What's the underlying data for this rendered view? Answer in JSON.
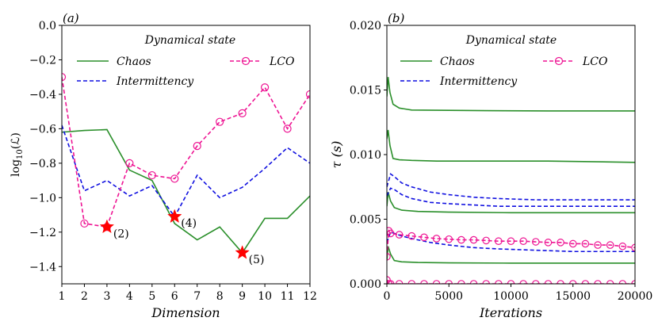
{
  "colors": {
    "chaos": "#2a8f2a",
    "intermittency": "#1010e0",
    "lco": "#ee1493",
    "star": "#ff0000"
  },
  "chart_data": [
    {
      "type": "line",
      "panel_label": "(a)",
      "xlabel": "Dimension",
      "ylabel": "log10(L)",
      "xlim": [
        1,
        12
      ],
      "ylim": [
        -1.5,
        0.0
      ],
      "xticks": [
        1,
        2,
        3,
        4,
        5,
        6,
        7,
        8,
        9,
        10,
        11,
        12
      ],
      "yticks": [
        0.0,
        -0.2,
        -0.4,
        -0.6,
        -0.8,
        -1.0,
        -1.2,
        -1.4
      ],
      "ytick_labels": [
        "0.0",
        "−0.2",
        "−0.4",
        "−0.6",
        "−0.8",
        "−1.0",
        "−1.2",
        "−1.4"
      ],
      "legend_title": "Dynamical state",
      "x": [
        1,
        2,
        3,
        4,
        5,
        6,
        7,
        8,
        9,
        10,
        11,
        12
      ],
      "series": [
        {
          "name": "Chaos",
          "style": "solid",
          "values": [
            -0.62,
            -0.61,
            -0.605,
            -0.84,
            -0.9,
            -1.15,
            -1.245,
            -1.17,
            -1.32,
            -1.12,
            -1.12,
            -0.99
          ]
        },
        {
          "name": "Intermittency",
          "style": "dashed",
          "values": [
            -0.58,
            -0.96,
            -0.9,
            -0.99,
            -0.93,
            -1.11,
            -0.87,
            -1.0,
            -0.94,
            -0.83,
            -0.71,
            -0.8
          ]
        },
        {
          "name": "LCO",
          "style": "dashed-circle",
          "values": [
            -0.3,
            -1.15,
            -1.17,
            -0.8,
            -0.87,
            -0.89,
            -0.7,
            -0.56,
            -0.51,
            -0.36,
            -0.6,
            -0.4
          ]
        }
      ],
      "annotations": [
        {
          "label": "(2)",
          "x": 3,
          "y": -1.17,
          "series": "LCO"
        },
        {
          "label": "(4)",
          "x": 6,
          "y": -1.11,
          "series": "Intermittency"
        },
        {
          "label": "(5)",
          "x": 9,
          "y": -1.32,
          "series": "Chaos"
        }
      ]
    },
    {
      "type": "line",
      "panel_label": "(b)",
      "xlabel": "Iterations",
      "ylabel": "τ (s)",
      "xlim": [
        0,
        20000
      ],
      "ylim": [
        0.0,
        0.02
      ],
      "xticks": [
        0,
        5000,
        10000,
        15000,
        20000
      ],
      "yticks": [
        0.0,
        0.005,
        0.01,
        0.015,
        0.02
      ],
      "ytick_labels": [
        "0.000",
        "0.005",
        "0.010",
        "0.015",
        "0.020"
      ],
      "legend_title": "Dynamical state",
      "series": [
        {
          "name": "Chaos",
          "style": "solid",
          "x": [
            0,
            100,
            250,
            500,
            1000,
            2000,
            4000,
            8000,
            13000,
            20000
          ],
          "values": [
            0.0145,
            0.016,
            0.0148,
            0.0139,
            0.0136,
            0.01345,
            0.01343,
            0.0134,
            0.01338,
            0.01338
          ]
        },
        {
          "name": "Chaos",
          "style": "solid",
          "x": [
            0,
            100,
            250,
            500,
            1000,
            2000,
            4000,
            8000,
            13000,
            20000
          ],
          "values": [
            0.0112,
            0.0119,
            0.0107,
            0.0097,
            0.0096,
            0.00955,
            0.0095,
            0.0095,
            0.0095,
            0.0094
          ]
        },
        {
          "name": "Chaos",
          "style": "solid",
          "x": [
            0,
            100,
            300,
            600,
            1200,
            2500,
            5000,
            10000,
            15000,
            20000
          ],
          "values": [
            0.006,
            0.0071,
            0.0064,
            0.0059,
            0.0057,
            0.0056,
            0.00555,
            0.0055,
            0.0055,
            0.0055
          ]
        },
        {
          "name": "Chaos",
          "style": "solid",
          "x": [
            0,
            100,
            300,
            600,
            1200,
            2500,
            5000,
            10000,
            15000,
            20000
          ],
          "values": [
            0.0018,
            0.0029,
            0.0023,
            0.0018,
            0.0017,
            0.00165,
            0.00162,
            0.0016,
            0.0016,
            0.0016
          ]
        },
        {
          "name": "Intermittency",
          "style": "dashed",
          "x": [
            0,
            300,
            600,
            1200,
            2000,
            3500,
            5000,
            7000,
            9000,
            12000,
            15000,
            20000
          ],
          "values": [
            0.0075,
            0.0085,
            0.0083,
            0.0078,
            0.0075,
            0.0071,
            0.0069,
            0.0067,
            0.0066,
            0.0065,
            0.0065,
            0.0065
          ]
        },
        {
          "name": "Intermittency",
          "style": "dashed",
          "x": [
            0,
            300,
            600,
            1200,
            2000,
            3500,
            5000,
            7000,
            9000,
            12000,
            15000,
            20000
          ],
          "values": [
            0.0068,
            0.0074,
            0.0073,
            0.0069,
            0.0066,
            0.0063,
            0.0062,
            0.0061,
            0.006,
            0.006,
            0.006,
            0.006
          ]
        },
        {
          "name": "Intermittency",
          "style": "dashed",
          "x": [
            0,
            300,
            600,
            1200,
            2000,
            3500,
            5000,
            7000,
            9000,
            12000,
            15000,
            20000
          ],
          "values": [
            0.0032,
            0.004,
            0.0039,
            0.0037,
            0.0035,
            0.0032,
            0.003,
            0.0028,
            0.0027,
            0.0026,
            0.0025,
            0.0025
          ]
        },
        {
          "name": "LCO",
          "style": "dashed-circle",
          "x": [
            0,
            150,
            300,
            1000,
            2000,
            3000,
            4000,
            5000,
            6000,
            7000,
            8000,
            9000,
            10000,
            11000,
            12000,
            13000,
            14000,
            15000,
            16000,
            17000,
            18000,
            19000,
            20000
          ],
          "values": [
            0.0021,
            0.0041,
            0.0039,
            0.0038,
            0.0037,
            0.0036,
            0.0035,
            0.00345,
            0.0034,
            0.0034,
            0.00335,
            0.0033,
            0.0033,
            0.0033,
            0.00325,
            0.0032,
            0.0032,
            0.0031,
            0.0031,
            0.003,
            0.003,
            0.0029,
            0.0028
          ]
        },
        {
          "name": "LCO",
          "style": "dashed-circle",
          "x": [
            0,
            150,
            300,
            1000,
            2000,
            3000,
            4000,
            5000,
            6000,
            7000,
            8000,
            9000,
            10000,
            11000,
            12000,
            13000,
            14000,
            15000,
            16000,
            17000,
            18000,
            19000,
            20000
          ],
          "values": [
            0.0003,
            0.0,
            0.0,
            0.0,
            0.0,
            0.0,
            0.0,
            0.0,
            0.0,
            0.0,
            0.0,
            0.0,
            0.0,
            0.0,
            0.0,
            0.0,
            0.0,
            0.0,
            0.0,
            0.0,
            0.0,
            0.0,
            0.0
          ]
        }
      ]
    }
  ]
}
